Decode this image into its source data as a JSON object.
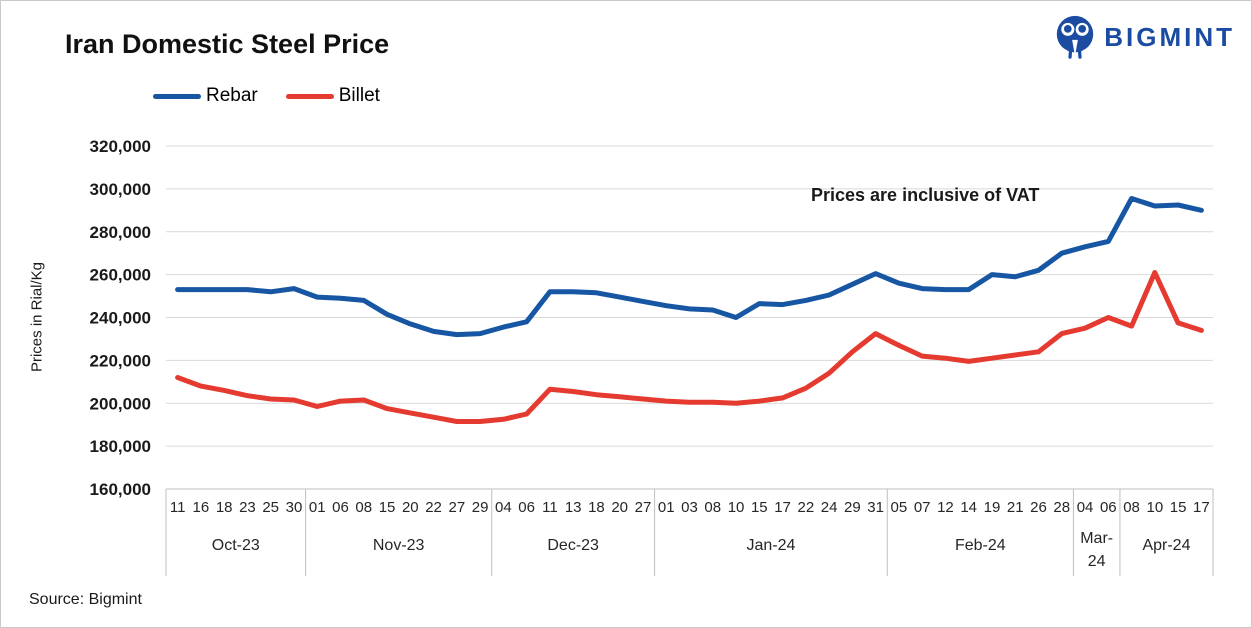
{
  "header": {
    "title": "Iran Domestic Steel Price",
    "brand": "BIGMINT"
  },
  "legend": [
    {
      "label": "Rebar",
      "color": "#1656a3"
    },
    {
      "label": "Billet",
      "color": "#e53a30"
    }
  ],
  "annotation": "Prices are inclusive of VAT",
  "source": "Source: Bigmint",
  "chart_data": {
    "type": "line",
    "title": "Iran Domestic Steel Price",
    "xlabel": "",
    "ylabel": "Prices in Rial/Kg",
    "ylim": [
      160000,
      320000
    ],
    "ytick_step": 20000,
    "y_ticks": [
      "320,000",
      "300,000",
      "280,000",
      "260,000",
      "240,000",
      "220,000",
      "200,000",
      "180,000",
      "160,000"
    ],
    "grid": "horizontal",
    "legend_position": "top-left",
    "categories": [
      "11",
      "16",
      "18",
      "23",
      "25",
      "30",
      "01",
      "06",
      "08",
      "15",
      "20",
      "22",
      "27",
      "29",
      "04",
      "06",
      "11",
      "13",
      "18",
      "20",
      "27",
      "01",
      "03",
      "08",
      "10",
      "15",
      "17",
      "22",
      "24",
      "29",
      "31",
      "05",
      "07",
      "12",
      "14",
      "19",
      "21",
      "26",
      "28",
      "04",
      "06",
      "08",
      "10",
      "15",
      "17"
    ],
    "month_groups": [
      {
        "label": "Oct-23",
        "count": 6
      },
      {
        "label": "Nov-23",
        "count": 8
      },
      {
        "label": "Dec-23",
        "count": 7
      },
      {
        "label": "Jan-24",
        "count": 10
      },
      {
        "label": "Feb-24",
        "count": 8
      },
      {
        "label": "Mar-24",
        "count": 2
      },
      {
        "label": "Apr-24",
        "count": 4
      }
    ],
    "series": [
      {
        "name": "Rebar",
        "color": "#1656a3",
        "values": [
          253000,
          253000,
          253000,
          253000,
          252000,
          253500,
          249500,
          249000,
          248000,
          241500,
          237000,
          233500,
          232000,
          232500,
          235500,
          238000,
          252000,
          252000,
          251500,
          249500,
          247500,
          245500,
          244000,
          243500,
          240000,
          246500,
          246000,
          248000,
          250500,
          255500,
          260500,
          256000,
          253500,
          253000,
          253000,
          260000,
          259000,
          262000,
          270000,
          273000,
          275500,
          295500,
          292000,
          292500,
          290000
        ]
      },
      {
        "name": "Billet",
        "color": "#e53a30",
        "values": [
          212000,
          208000,
          206000,
          203500,
          202000,
          201500,
          198500,
          201000,
          201500,
          197500,
          195500,
          193500,
          191500,
          191500,
          192500,
          195000,
          206500,
          205500,
          204000,
          203000,
          202000,
          201000,
          200500,
          200500,
          200000,
          201000,
          202500,
          207000,
          214000,
          224000,
          232500,
          227000,
          222000,
          221000,
          219500,
          221000,
          222500,
          224000,
          232500,
          235000,
          240000,
          236000,
          261000,
          237500,
          234000
        ]
      }
    ]
  }
}
